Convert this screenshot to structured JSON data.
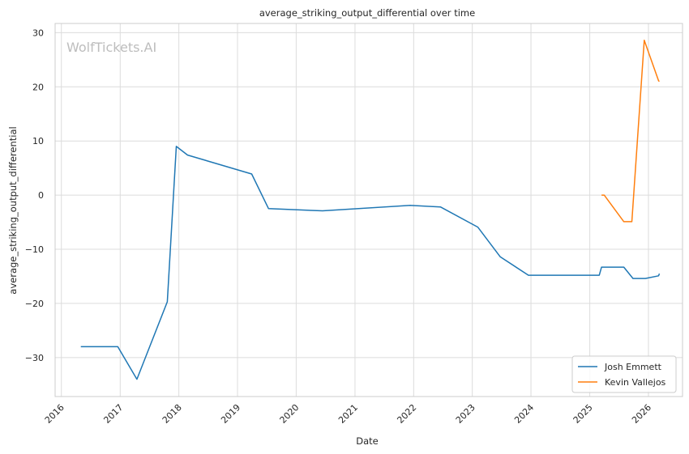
{
  "watermark": "WolfTickets.AI",
  "chart_data": {
    "type": "line",
    "title": "average_striking_output_differential over time",
    "xlabel": "Date",
    "ylabel": "average_striking_output_differential",
    "x_tick_labels": [
      "2016",
      "2017",
      "2018",
      "2019",
      "2020",
      "2021",
      "2022",
      "2023",
      "2024",
      "2025",
      "2026"
    ],
    "y_tick_labels": [
      "30",
      "20",
      "10",
      "0",
      "−10",
      "−20",
      "−30"
    ],
    "y_ticks": [
      30,
      20,
      10,
      0,
      -10,
      -20,
      -30
    ],
    "xlim": [
      "2015-11-23",
      "2026-08-01"
    ],
    "ylim": [
      -37.2,
      31.7
    ],
    "grid": true,
    "legend_position": "lower-right",
    "series": [
      {
        "name": "Josh Emmett",
        "color": "#1f77b4",
        "points": [
          [
            "2016-05-01",
            -28.0
          ],
          [
            "2016-12-17",
            -28.0
          ],
          [
            "2017-04-15",
            -34.0
          ],
          [
            "2017-10-21",
            -19.7
          ],
          [
            "2017-12-16",
            9.0
          ],
          [
            "2018-02-24",
            7.4
          ],
          [
            "2019-03-30",
            3.9
          ],
          [
            "2019-07-13",
            -2.5
          ],
          [
            "2020-06-13",
            -2.9
          ],
          [
            "2021-12-11",
            -1.9
          ],
          [
            "2022-06-18",
            -2.2
          ],
          [
            "2023-02-04",
            -5.9
          ],
          [
            "2023-06-24",
            -11.4
          ],
          [
            "2023-12-16",
            -14.8
          ],
          [
            "2025-03-01",
            -14.8
          ],
          [
            "2025-03-15",
            -13.3
          ],
          [
            "2025-08-01",
            -13.3
          ],
          [
            "2025-09-27",
            -15.4
          ],
          [
            "2025-12-13",
            -15.4
          ],
          [
            "2026-03-05",
            -14.9
          ],
          [
            "2026-03-10",
            -14.5
          ]
        ]
      },
      {
        "name": "Kevin Vallejos",
        "color": "#ff7f0e",
        "points": [
          [
            "2025-03-15",
            0.0
          ],
          [
            "2025-04-01",
            0.0
          ],
          [
            "2025-08-01",
            -4.9
          ],
          [
            "2025-09-20",
            -4.9
          ],
          [
            "2025-12-06",
            28.6
          ],
          [
            "2026-03-05",
            21.1
          ],
          [
            "2026-03-10",
            21.0
          ]
        ]
      }
    ]
  }
}
